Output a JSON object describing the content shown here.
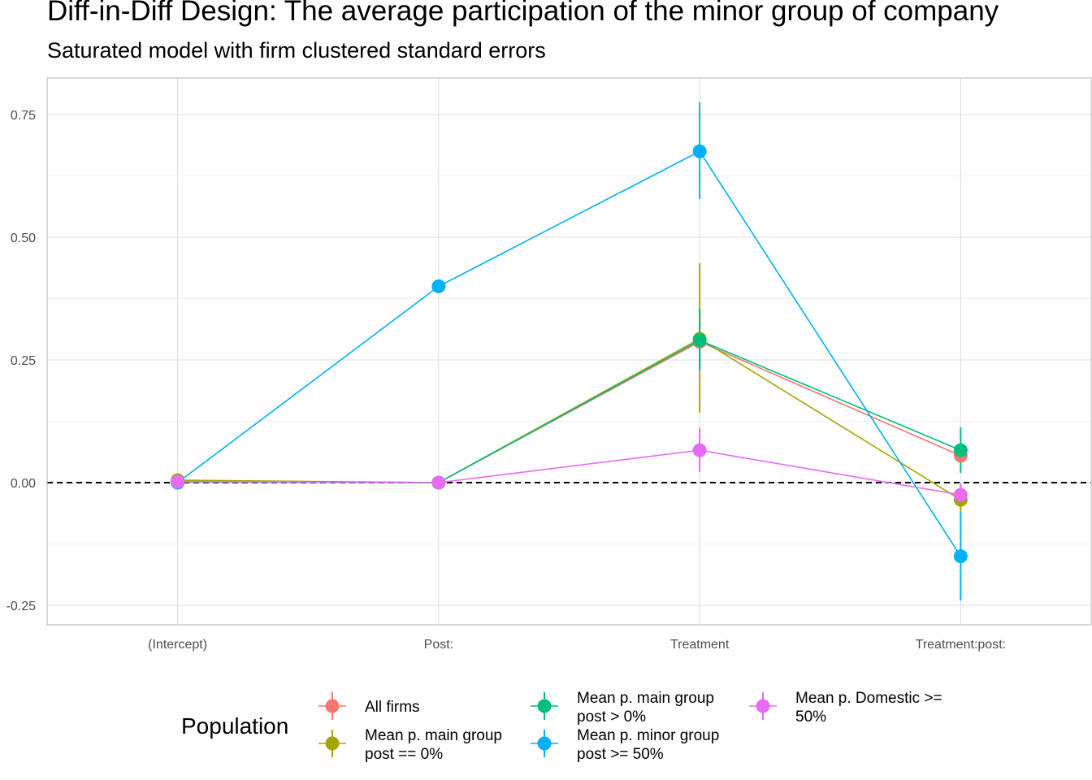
{
  "chart_data": {
    "type": "line",
    "title": "Diff-in-Diff Design: The average participation of the minor group of company",
    "subtitle": "Saturated model with firm clustered standard errors",
    "xlabel": "",
    "ylabel": "",
    "categories": [
      "(Intercept)",
      "Post:",
      "Treatment",
      "Treatment:post:"
    ],
    "ylim": [
      -0.29,
      0.82
    ],
    "yticks": [
      -0.25,
      0.0,
      0.25,
      0.5,
      0.75
    ],
    "ytick_labels": [
      "-0.25",
      "0.00",
      "0.25",
      "0.50",
      "0.75"
    ],
    "reference_line": {
      "y": 0,
      "style": "dashed",
      "color": "#000000"
    },
    "grid": true,
    "legend": {
      "title": "Population",
      "position": "bottom"
    },
    "series": [
      {
        "name": "All firms",
        "color": "#F8766D",
        "values": [
          0.003,
          0.0,
          0.287,
          0.055
        ],
        "lower": [
          0.003,
          0.0,
          0.23,
          0.035
        ],
        "upper": [
          0.003,
          0.0,
          0.345,
          0.075
        ]
      },
      {
        "name": "Mean p. main group post == 0%",
        "color": "#A3A500",
        "values": [
          0.005,
          0.0,
          0.293,
          -0.035
        ],
        "lower": [
          0.005,
          0.0,
          0.143,
          -0.065
        ],
        "upper": [
          0.005,
          0.0,
          0.447,
          -0.005
        ]
      },
      {
        "name": "Mean p. main group post > 0%",
        "color": "#00BF7D",
        "values": [
          0.001,
          0.0,
          0.29,
          0.066
        ],
        "lower": [
          0.001,
          0.0,
          0.23,
          0.02
        ],
        "upper": [
          0.001,
          0.0,
          0.355,
          0.113
        ]
      },
      {
        "name": "Mean p. minor group post >= 50%",
        "color": "#00B0F6",
        "values": [
          0.0,
          0.4,
          0.675,
          -0.15
        ],
        "lower": [
          0.0,
          0.4,
          0.578,
          -0.24
        ],
        "upper": [
          0.0,
          0.4,
          0.775,
          -0.06
        ]
      },
      {
        "name": "Mean p. Domestic >= 50%",
        "color": "#E76BF3",
        "values": [
          0.002,
          0.0,
          0.066,
          -0.025
        ],
        "lower": [
          0.002,
          0.0,
          0.022,
          -0.048
        ],
        "upper": [
          0.002,
          0.0,
          0.112,
          -0.002
        ]
      }
    ]
  }
}
